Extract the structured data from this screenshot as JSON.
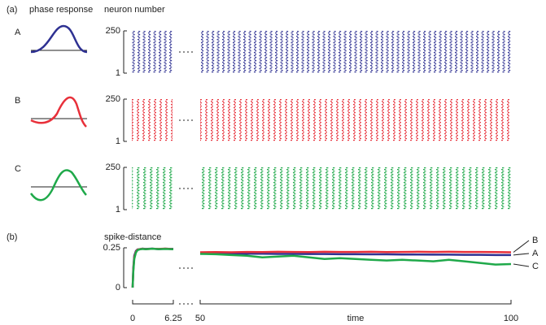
{
  "panel_labels": [
    "(a)",
    "(b)"
  ],
  "column_titles": [
    "phase response",
    "neuron number"
  ],
  "raster": {
    "ylim": [
      1,
      250
    ],
    "yticks": [
      1,
      250
    ],
    "rows": [
      "A",
      "B",
      "C"
    ]
  },
  "chart_data": {
    "type": "line",
    "ylabel": "spike-distance",
    "xlabel": "time",
    "xlim": [
      0,
      100
    ],
    "xbreak": [
      6.25,
      50
    ],
    "xticks": [
      0,
      6.25,
      50,
      100
    ],
    "ylim": [
      0,
      0.25
    ],
    "yticks": [
      0,
      0.25
    ],
    "x": [
      0,
      0.1,
      0.25,
      0.5,
      0.75,
      1,
      1.5,
      2,
      3,
      4,
      5,
      6.25,
      50,
      52.5,
      55,
      57.5,
      60,
      62.5,
      65,
      67.5,
      70,
      72.5,
      75,
      77.5,
      80,
      82.5,
      85,
      87.5,
      90,
      92.5,
      95,
      97.5,
      100
    ],
    "series": [
      {
        "name": "A",
        "color": "#2e3192",
        "values": [
          0,
          0.12,
          0.2,
          0.23,
          0.24,
          0.24,
          0.245,
          0.243,
          0.245,
          0.242,
          0.244,
          0.243,
          0.215,
          0.214,
          0.214,
          0.213,
          0.213,
          0.212,
          0.212,
          0.211,
          0.211,
          0.21,
          0.21,
          0.209,
          0.209,
          0.208,
          0.208,
          0.207,
          0.207,
          0.206,
          0.206,
          0.205,
          0.205
        ]
      },
      {
        "name": "B",
        "color": "#e8303a",
        "values": [
          0,
          0.11,
          0.19,
          0.225,
          0.238,
          0.241,
          0.244,
          0.242,
          0.244,
          0.243,
          0.245,
          0.242,
          0.222,
          0.223,
          0.222,
          0.224,
          0.223,
          0.225,
          0.224,
          0.223,
          0.225,
          0.224,
          0.224,
          0.225,
          0.223,
          0.224,
          0.225,
          0.224,
          0.225,
          0.224,
          0.224,
          0.223,
          0.222
        ]
      },
      {
        "name": "C",
        "color": "#1fa94a",
        "values": [
          0,
          0.1,
          0.18,
          0.22,
          0.235,
          0.24,
          0.243,
          0.241,
          0.244,
          0.242,
          0.243,
          0.241,
          0.212,
          0.21,
          0.205,
          0.2,
          0.19,
          0.195,
          0.2,
          0.19,
          0.18,
          0.185,
          0.18,
          0.175,
          0.17,
          0.175,
          0.17,
          0.165,
          0.175,
          0.165,
          0.155,
          0.145,
          0.148
        ]
      }
    ]
  }
}
